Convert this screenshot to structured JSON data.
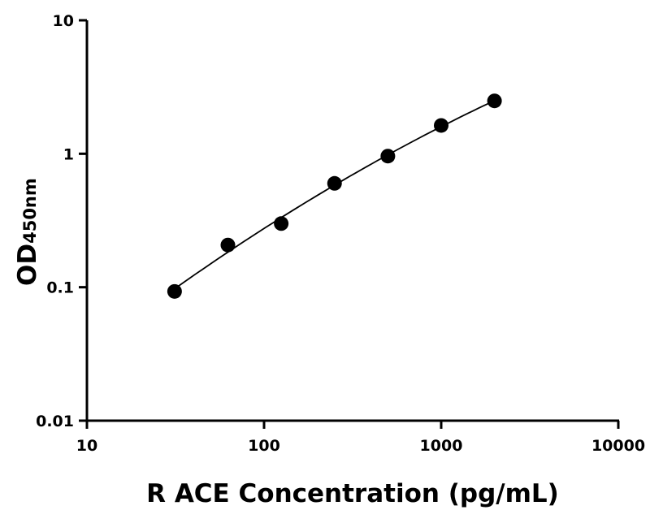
{
  "chart_data": {
    "type": "scatter",
    "title": "",
    "xlabel": "R ACE Concentration (pg/mL)",
    "ylabel": "OD",
    "ylabel_subscript": "450nm",
    "xscale": "log",
    "yscale": "log",
    "xlim": [
      10,
      10000
    ],
    "ylim": [
      0.01,
      10
    ],
    "xticks": [
      "10",
      "100",
      "1000",
      "10000"
    ],
    "yticks": [
      "0.01",
      "0.1",
      "1",
      "10"
    ],
    "grid": false,
    "fit_curve": true,
    "point_color": "#000000",
    "points": [
      {
        "x": 31.25,
        "y": 0.093
      },
      {
        "x": 62.5,
        "y": 0.207
      },
      {
        "x": 125,
        "y": 0.3
      },
      {
        "x": 250,
        "y": 0.6
      },
      {
        "x": 500,
        "y": 0.96
      },
      {
        "x": 1000,
        "y": 1.63
      },
      {
        "x": 2000,
        "y": 2.49
      }
    ]
  }
}
